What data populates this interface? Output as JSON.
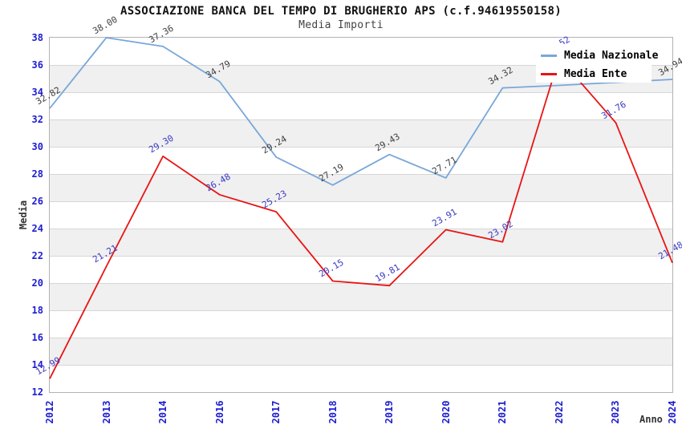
{
  "header": {
    "title": "ASSOCIAZIONE BANCA DEL TEMPO DI BRUGHERIO APS (c.f.94619550158)",
    "subtitle": "Media Importi"
  },
  "axes": {
    "y_title": "Media",
    "x_title": "Anno",
    "y_ticks": [
      "12",
      "14",
      "16",
      "18",
      "20",
      "22",
      "24",
      "26",
      "28",
      "30",
      "32",
      "34",
      "36",
      "38"
    ],
    "x_ticks": [
      "2012",
      "2013",
      "2014",
      "2016",
      "2017",
      "2018",
      "2019",
      "2020",
      "2021",
      "2022",
      "2023",
      "2024"
    ]
  },
  "legend": {
    "position": "top-right",
    "items": [
      {
        "label": "Media Nazionale",
        "color": "#79a7d9"
      },
      {
        "label": "Media Ente",
        "color": "#e81414"
      }
    ]
  },
  "chart_data": {
    "type": "line",
    "title": "ASSOCIAZIONE BANCA DEL TEMPO DI BRUGHERIO APS (c.f.94619550158)",
    "subtitle": "Media Importi",
    "xlabel": "Anno",
    "ylabel": "Media",
    "categories": [
      "2012",
      "2013",
      "2014",
      "2016",
      "2017",
      "2018",
      "2019",
      "2020",
      "2021",
      "2022",
      "2023",
      "2024"
    ],
    "series": [
      {
        "name": "Media Nazionale",
        "color": "#79a7d9",
        "label_color": "#3f3f3f",
        "values": [
          32.82,
          38.0,
          37.36,
          34.79,
          29.24,
          27.19,
          29.43,
          27.71,
          34.32,
          34.5,
          34.72,
          34.94
        ],
        "point_labels": [
          "32.82",
          "38.00",
          "37.36",
          "34.79",
          "29.24",
          "27.19",
          "29.43",
          "27.71",
          "34.32",
          null,
          null,
          "34.94"
        ]
      },
      {
        "name": "Media Ente",
        "color": "#e81414",
        "label_color": "#3939c4",
        "values": [
          12.99,
          21.21,
          29.3,
          26.48,
          25.23,
          20.15,
          19.81,
          23.91,
          23.02,
          36.52,
          31.76,
          21.48
        ],
        "point_labels": [
          "12.99",
          "21.21",
          "29.30",
          "26.48",
          "25.23",
          "20.15",
          "19.81",
          "23.91",
          "23.02",
          "36.52",
          "31.76",
          "21.48"
        ]
      }
    ],
    "ylim": [
      12,
      38
    ],
    "y_tick_step": 2,
    "x_tick_rotation": -90,
    "grid": "horizontal gridlines with alternating gray bands",
    "legend_position": "top-right"
  },
  "colors": {
    "background": "#ffffff",
    "band": "#f0f0f0",
    "gridline": "#d6d6d6",
    "plot_border": "#b2b2b2",
    "tick_label": "#1d1dd1",
    "title": "#111111",
    "subtitle": "#444444",
    "axis_title": "#333333"
  }
}
